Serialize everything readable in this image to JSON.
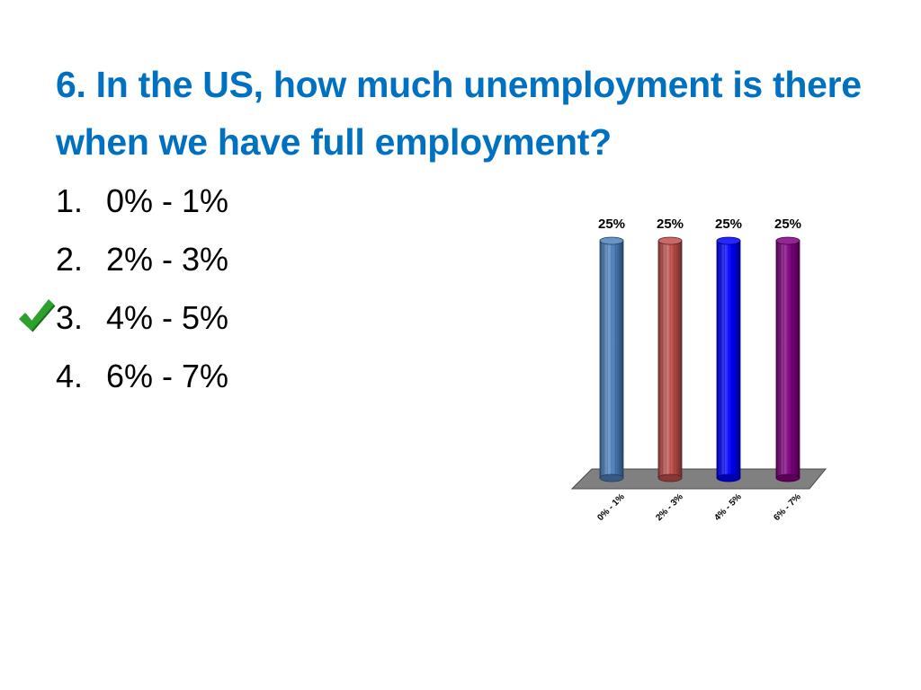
{
  "slide": {
    "title": "6. In the US, how much unemployment is there when we have full employment?",
    "title_color": "#0070C0"
  },
  "answers": [
    {
      "number": "1.",
      "text": "0% - 1%",
      "correct": false
    },
    {
      "number": "2.",
      "text": "2% - 3%",
      "correct": false
    },
    {
      "number": "3.",
      "text": "4% - 5%",
      "correct": true
    },
    {
      "number": "4.",
      "text": "6% - 7%",
      "correct": false
    }
  ],
  "correct_mark": {
    "icon": "green-checkmark-icon",
    "color": "#2DA12D"
  },
  "chart_data": {
    "type": "bar",
    "style": "3d-cylinder",
    "categories": [
      "0% - 1%",
      "2% - 3%",
      "4% - 5%",
      "6% - 7%"
    ],
    "values": [
      25,
      25,
      25,
      25
    ],
    "data_labels": [
      "25%",
      "25%",
      "25%",
      "25%"
    ],
    "colors": [
      "#4F81BD",
      "#C0504D",
      "#0000FF",
      "#800080"
    ],
    "floor_color": "#808080",
    "ylim": [
      0,
      25
    ],
    "grid": false,
    "legend": "none",
    "title": "",
    "xlabel": "",
    "ylabel": ""
  }
}
